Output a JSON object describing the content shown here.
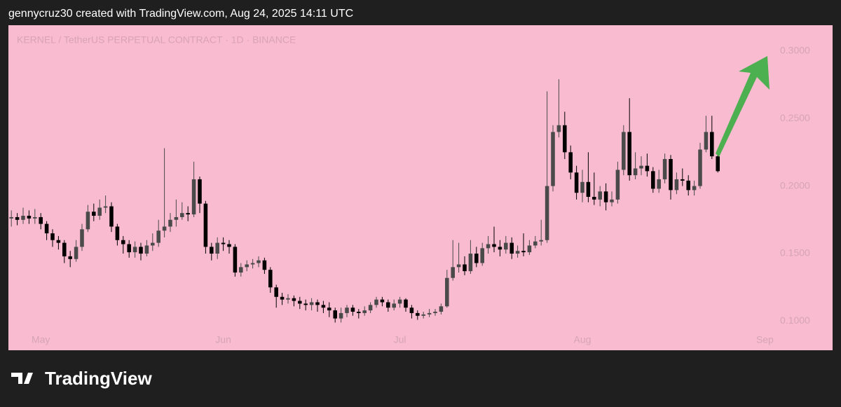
{
  "header": {
    "text": "gennycruz30 created with TradingView.com, Aug 24, 2025 14:11 UTC"
  },
  "chart_data": {
    "type": "candlestick",
    "title": "KERNEL / TetherUS PERPETUAL CONTRACT · 1D · BINANCE",
    "categories": [
      null,
      null,
      null,
      null,
      null,
      "May",
      null,
      null,
      null,
      null,
      null,
      null,
      null,
      null,
      null,
      null,
      null,
      null,
      null,
      null,
      null,
      null,
      null,
      null,
      null,
      null,
      null,
      null,
      null,
      null,
      null,
      null,
      null,
      null,
      null,
      null,
      "Jun",
      null,
      null,
      null,
      null,
      null,
      null,
      null,
      null,
      null,
      null,
      null,
      null,
      null,
      null,
      null,
      null,
      null,
      null,
      null,
      null,
      null,
      null,
      null,
      null,
      null,
      null,
      null,
      null,
      null,
      "Jul",
      null,
      null,
      null,
      null,
      null,
      null,
      null,
      null,
      null,
      null,
      null,
      null,
      null,
      null,
      null,
      null,
      null,
      null,
      null,
      null,
      null,
      null,
      null,
      null,
      null,
      null,
      null,
      null,
      null,
      null,
      "Aug",
      null,
      null,
      null,
      null,
      null,
      null,
      null,
      null,
      null,
      null,
      null,
      null,
      null,
      null,
      null,
      null,
      null,
      null,
      null,
      null,
      null,
      null,
      null,
      null,
      null,
      null,
      null,
      null,
      null,
      null,
      "Sep",
      null
    ],
    "open": [
      0.176,
      0.177,
      0.175,
      0.178,
      0.176,
      0.177,
      0.172,
      0.165,
      0.16,
      0.158,
      0.148,
      0.146,
      0.155,
      0.168,
      0.181,
      0.178,
      0.184,
      0.185,
      0.17,
      0.16,
      0.157,
      0.151,
      0.155,
      0.15,
      0.156,
      0.158,
      0.167,
      0.17,
      0.175,
      0.177,
      0.18,
      0.179,
      0.205,
      0.187,
      0.155,
      0.15,
      0.158,
      0.157,
      0.155,
      0.136,
      0.14,
      0.142,
      0.143,
      0.145,
      0.138,
      0.125,
      0.118,
      0.116,
      0.117,
      0.115,
      0.113,
      0.112,
      0.114,
      0.112,
      0.11,
      0.108,
      0.102,
      0.106,
      0.11,
      0.107,
      0.106,
      0.108,
      0.112,
      0.116,
      0.114,
      0.11,
      0.113,
      0.116,
      0.11,
      0.106,
      0.104,
      0.105,
      0.106,
      0.107,
      0.111,
      0.132,
      0.14,
      0.142,
      0.137,
      0.15,
      0.143,
      0.154,
      0.157,
      0.155,
      0.153,
      0.158,
      0.15,
      0.152,
      0.151,
      0.156,
      0.159,
      0.16,
      0.2,
      0.24,
      0.245,
      0.225,
      0.21,
      0.195,
      0.203,
      0.192,
      0.19,
      0.196,
      0.188,
      0.19,
      0.212,
      0.24,
      0.208,
      0.213,
      0.215,
      0.211,
      0.198,
      0.205,
      0.22,
      0.197,
      0.205,
      0.204,
      0.197,
      0.2,
      0.227,
      0.24,
      0.222,
      null,
      null,
      null,
      null,
      null,
      null,
      null,
      null,
      null
    ],
    "high": [
      0.182,
      0.18,
      0.184,
      0.182,
      0.183,
      0.18,
      0.174,
      0.168,
      0.163,
      0.16,
      0.152,
      0.16,
      0.172,
      0.186,
      0.187,
      0.19,
      0.193,
      0.188,
      0.172,
      0.163,
      0.16,
      0.159,
      0.158,
      0.16,
      0.165,
      0.175,
      0.228,
      0.18,
      0.19,
      0.188,
      0.185,
      0.218,
      0.207,
      0.189,
      0.158,
      0.162,
      0.162,
      0.16,
      0.157,
      0.143,
      0.145,
      0.146,
      0.148,
      0.147,
      0.14,
      0.127,
      0.121,
      0.12,
      0.119,
      0.118,
      0.116,
      0.117,
      0.116,
      0.115,
      0.114,
      0.11,
      0.11,
      0.112,
      0.112,
      0.109,
      0.111,
      0.114,
      0.118,
      0.118,
      0.116,
      0.116,
      0.118,
      0.117,
      0.112,
      0.108,
      0.107,
      0.109,
      0.109,
      0.113,
      0.138,
      0.16,
      0.158,
      0.148,
      0.16,
      0.155,
      0.158,
      0.163,
      0.17,
      0.16,
      0.163,
      0.162,
      0.156,
      0.165,
      0.16,
      0.163,
      0.175,
      0.27,
      0.245,
      0.279,
      0.255,
      0.23,
      0.215,
      0.212,
      0.225,
      0.21,
      0.2,
      0.202,
      0.196,
      0.218,
      0.245,
      0.265,
      0.225,
      0.222,
      0.224,
      0.214,
      0.212,
      0.224,
      0.223,
      0.21,
      0.213,
      0.208,
      0.204,
      0.232,
      0.252,
      0.252,
      0.224,
      null,
      null,
      null,
      null,
      null,
      null,
      null,
      null,
      null
    ],
    "low": [
      0.17,
      0.171,
      0.172,
      0.172,
      0.172,
      0.168,
      0.16,
      0.155,
      0.153,
      0.143,
      0.14,
      0.144,
      0.152,
      0.166,
      0.174,
      0.175,
      0.18,
      0.166,
      0.156,
      0.15,
      0.147,
      0.147,
      0.145,
      0.148,
      0.152,
      0.155,
      0.162,
      0.166,
      0.17,
      0.175,
      0.174,
      0.177,
      0.18,
      0.15,
      0.145,
      0.146,
      0.152,
      0.15,
      0.133,
      0.133,
      0.137,
      0.139,
      0.14,
      0.135,
      0.121,
      0.11,
      0.112,
      0.113,
      0.111,
      0.109,
      0.108,
      0.108,
      0.107,
      0.106,
      0.103,
      0.099,
      0.099,
      0.103,
      0.104,
      0.102,
      0.104,
      0.106,
      0.11,
      0.111,
      0.107,
      0.108,
      0.11,
      0.107,
      0.102,
      0.101,
      0.102,
      0.103,
      0.104,
      0.105,
      0.11,
      0.13,
      0.136,
      0.134,
      0.135,
      0.14,
      0.141,
      0.15,
      0.151,
      0.148,
      0.15,
      0.146,
      0.147,
      0.148,
      0.149,
      0.154,
      0.156,
      0.158,
      0.196,
      0.236,
      0.22,
      0.205,
      0.19,
      0.188,
      0.188,
      0.186,
      0.185,
      0.182,
      0.185,
      0.187,
      0.208,
      0.204,
      0.205,
      0.208,
      0.207,
      0.195,
      0.195,
      0.202,
      0.19,
      0.194,
      0.2,
      0.193,
      0.193,
      0.198,
      0.225,
      0.22,
      0.21,
      null,
      null,
      null,
      null,
      null,
      null,
      null,
      null,
      null
    ],
    "close": [
      0.177,
      0.175,
      0.178,
      0.176,
      0.177,
      0.172,
      0.165,
      0.16,
      0.158,
      0.148,
      0.146,
      0.155,
      0.168,
      0.181,
      0.178,
      0.184,
      0.185,
      0.17,
      0.16,
      0.157,
      0.151,
      0.155,
      0.15,
      0.156,
      0.158,
      0.167,
      0.17,
      0.175,
      0.177,
      0.18,
      0.179,
      0.205,
      0.187,
      0.155,
      0.15,
      0.158,
      0.157,
      0.155,
      0.136,
      0.14,
      0.142,
      0.143,
      0.145,
      0.138,
      0.125,
      0.118,
      0.116,
      0.117,
      0.115,
      0.113,
      0.112,
      0.114,
      0.112,
      0.11,
      0.108,
      0.102,
      0.106,
      0.11,
      0.107,
      0.106,
      0.108,
      0.112,
      0.116,
      0.114,
      0.11,
      0.113,
      0.116,
      0.11,
      0.106,
      0.104,
      0.105,
      0.106,
      0.107,
      0.111,
      0.132,
      0.14,
      0.142,
      0.137,
      0.15,
      0.143,
      0.154,
      0.157,
      0.155,
      0.153,
      0.158,
      0.15,
      0.152,
      0.151,
      0.156,
      0.159,
      0.16,
      0.2,
      0.24,
      0.245,
      0.225,
      0.21,
      0.195,
      0.203,
      0.192,
      0.19,
      0.196,
      0.188,
      0.19,
      0.212,
      0.24,
      0.208,
      0.213,
      0.215,
      0.211,
      0.198,
      0.205,
      0.22,
      0.197,
      0.205,
      0.204,
      0.197,
      0.2,
      0.227,
      0.24,
      0.222,
      0.211,
      null,
      null,
      null,
      null,
      null,
      null,
      null,
      null,
      null
    ],
    "up_color": "#4a4a4a",
    "down_color": "#000000",
    "ylim": [
      0.093,
      0.319
    ],
    "yticks": [
      {
        "value": 0.1,
        "label": "0.1000"
      },
      {
        "value": 0.15,
        "label": "0.1500"
      },
      {
        "value": 0.2,
        "label": "0.2000"
      },
      {
        "value": 0.25,
        "label": "0.2500"
      },
      {
        "value": 0.3,
        "label": "0.3000"
      }
    ],
    "grid": false
  },
  "footer": {
    "logo": "TradingView"
  }
}
